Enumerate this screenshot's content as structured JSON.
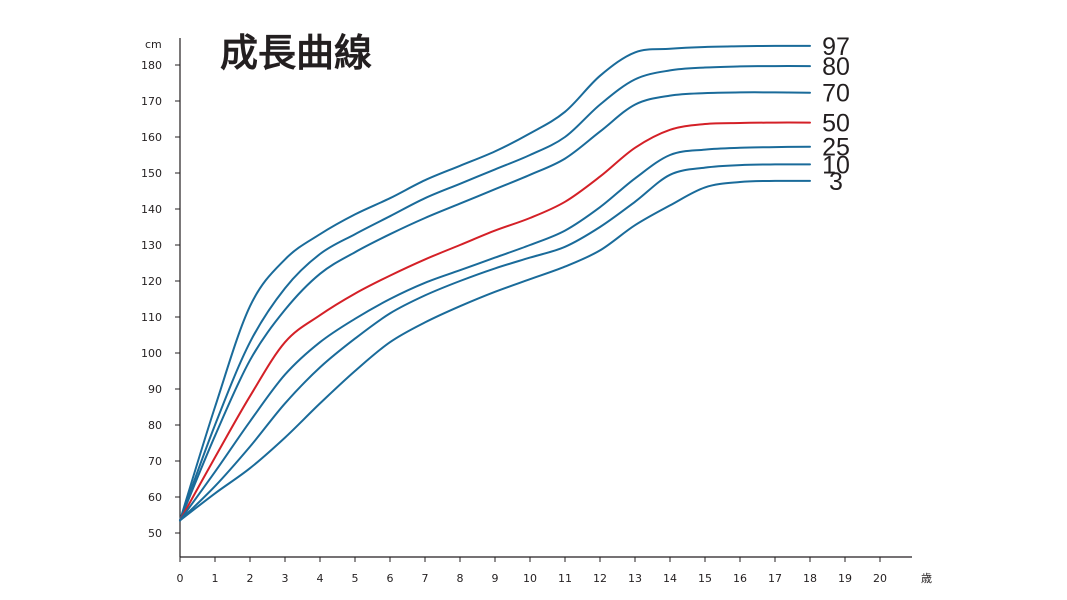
{
  "chart_data": {
    "type": "line",
    "title": "成長曲線",
    "ylabel": "cm",
    "xlabel": "歳",
    "xlim": [
      0,
      21
    ],
    "ylim": [
      43,
      187
    ],
    "xticks": [
      0,
      1,
      2,
      3,
      4,
      5,
      6,
      7,
      8,
      9,
      10,
      11,
      12,
      13,
      14,
      15,
      16,
      17,
      18,
      19,
      20
    ],
    "yticks": [
      50,
      60,
      70,
      80,
      90,
      100,
      110,
      120,
      130,
      140,
      150,
      160,
      170,
      180
    ],
    "x": [
      0,
      1,
      2,
      3,
      4,
      5,
      6,
      7,
      8,
      9,
      10,
      11,
      12,
      13,
      14,
      15,
      16,
      17,
      18
    ],
    "series": [
      {
        "name": "97",
        "color": "#1a6b9a",
        "values": [
          53.5,
          85,
          113,
          126,
          133,
          138.5,
          143,
          148,
          152,
          156,
          161,
          167,
          177,
          183.5,
          184.5,
          185,
          185.2,
          185.3,
          185.3
        ]
      },
      {
        "name": "80",
        "color": "#1a6b9a",
        "values": [
          53.5,
          80,
          103,
          118,
          127.5,
          133,
          138,
          143,
          147,
          151,
          155,
          160,
          169,
          176,
          178.5,
          179.3,
          179.6,
          179.7,
          179.7
        ]
      },
      {
        "name": "70",
        "color": "#1a6b9a",
        "values": [
          53.5,
          77,
          98,
          112,
          122,
          128,
          133,
          137.5,
          141.5,
          145.5,
          149.5,
          154,
          161.5,
          169,
          171.5,
          172.2,
          172.4,
          172.4,
          172.3
        ]
      },
      {
        "name": "50",
        "color": "#d42027",
        "values": [
          53.5,
          71,
          88,
          103,
          110.5,
          116.5,
          121.5,
          126,
          130,
          134,
          137.5,
          142,
          149,
          157,
          162,
          163.6,
          163.9,
          164,
          164
        ]
      },
      {
        "name": "25",
        "color": "#1a6b9a",
        "values": [
          53.5,
          67,
          81,
          94,
          103,
          109.5,
          115,
          119.5,
          123,
          126.5,
          130,
          134,
          140.5,
          148.5,
          155,
          156.5,
          157,
          157.2,
          157.3
        ]
      },
      {
        "name": "10",
        "color": "#1a6b9a",
        "values": [
          53.5,
          63,
          74,
          86,
          96,
          104,
          111,
          116,
          120,
          123.5,
          126.5,
          129.5,
          135,
          142,
          149.5,
          151.5,
          152.2,
          152.4,
          152.4
        ]
      },
      {
        "name": "3",
        "color": "#1a6b9a",
        "values": [
          53.5,
          61,
          68,
          76.5,
          86,
          95,
          103,
          108.5,
          113,
          117,
          120.5,
          124,
          128.5,
          135.5,
          141,
          146,
          147.5,
          147.8,
          147.8
        ]
      }
    ]
  }
}
